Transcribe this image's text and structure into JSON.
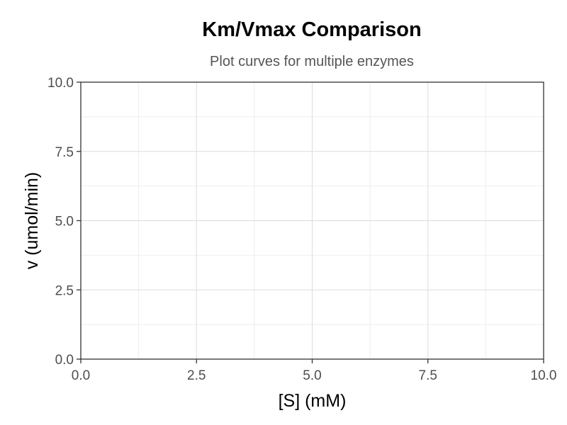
{
  "chart_data": {
    "type": "line",
    "title": "Km/Vmax Comparison",
    "subtitle": "Plot curves for multiple enzymes",
    "xlabel": "[S] (mM)",
    "ylabel": "v (umol/min)",
    "xlim": [
      0,
      10
    ],
    "ylim": [
      0,
      10
    ],
    "xticks": [
      "0.0",
      "2.5",
      "5.0",
      "7.5",
      "10.0"
    ],
    "yticks": [
      "0.0",
      "2.5",
      "5.0",
      "7.5",
      "10.0"
    ],
    "grid": true,
    "series": []
  },
  "colors": {
    "grid_major": "#dcdcdc",
    "grid_minor": "#eeeeee",
    "axis": "#333333"
  }
}
